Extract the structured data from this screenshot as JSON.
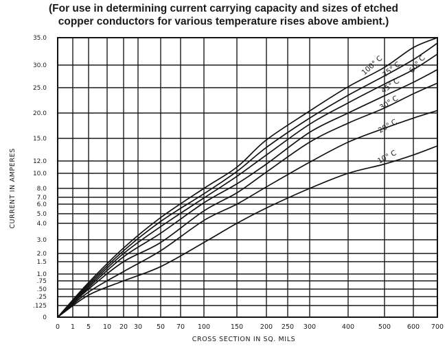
{
  "caption": {
    "line1": "(For use in determining current carrying capacity and sizes of etched",
    "line2": "copper conductors for various temperature rises above ambient.)"
  },
  "chart_data": {
    "type": "line",
    "title": "(For use in determining current carrying capacity and sizes of etched copper conductors for various temperature rises above ambient.)",
    "xlabel": "CROSS SECTION IN SQ. MILS",
    "ylabel": "CURRENT IN AMPERES",
    "xlim": [
      0,
      700
    ],
    "ylim": [
      0,
      35
    ],
    "grid": true,
    "x_ticks": [
      "0",
      "1",
      "5",
      "10",
      "20",
      "30",
      "50",
      "70",
      "100",
      "150",
      "200",
      "250",
      "300",
      "400",
      "500",
      "600",
      "700"
    ],
    "y_ticks": [
      "0",
      ".125",
      ".25",
      ".50",
      ".75",
      "1.0",
      "1.5",
      "2.0",
      "3.0",
      "4.0",
      "5.0",
      "6.0",
      "7.0",
      "8.0",
      "10.0",
      "12.0",
      "15.0",
      "20.0",
      "25.0",
      "30.0",
      "35.0"
    ],
    "series": [
      {
        "name": "10° C",
        "values": [
          [
            0,
            0
          ],
          [
            5,
            0.3
          ],
          [
            20,
            0.75
          ],
          [
            50,
            1.3
          ],
          [
            100,
            2.8
          ],
          [
            150,
            4.0
          ],
          [
            200,
            5.6
          ],
          [
            300,
            8.0
          ],
          [
            400,
            10.0
          ],
          [
            500,
            11.5
          ],
          [
            600,
            12.8
          ],
          [
            700,
            14.0
          ]
        ]
      },
      {
        "name": "20° C",
        "values": [
          [
            0,
            0
          ],
          [
            5,
            0.4
          ],
          [
            20,
            1.1
          ],
          [
            50,
            2.2
          ],
          [
            100,
            4.3
          ],
          [
            150,
            6.0
          ],
          [
            200,
            8.2
          ],
          [
            300,
            11.8
          ],
          [
            400,
            14.5
          ],
          [
            500,
            17.0
          ],
          [
            600,
            19.0
          ],
          [
            700,
            20.5
          ]
        ]
      },
      {
        "name": "30° C",
        "values": [
          [
            0,
            0
          ],
          [
            5,
            0.5
          ],
          [
            20,
            1.5
          ],
          [
            50,
            2.8
          ],
          [
            100,
            5.3
          ],
          [
            150,
            7.5
          ],
          [
            200,
            10.2
          ],
          [
            300,
            14.5
          ],
          [
            400,
            18.0
          ],
          [
            500,
            21.0
          ],
          [
            600,
            23.8
          ],
          [
            700,
            26.0
          ]
        ]
      },
      {
        "name": "45° C",
        "values": [
          [
            0,
            0
          ],
          [
            5,
            0.55
          ],
          [
            20,
            1.8
          ],
          [
            50,
            3.4
          ],
          [
            100,
            6.2
          ],
          [
            150,
            8.6
          ],
          [
            200,
            11.5
          ],
          [
            300,
            16.2
          ],
          [
            400,
            20.0
          ],
          [
            500,
            23.4
          ],
          [
            600,
            26.2
          ],
          [
            700,
            29.0
          ]
        ]
      },
      {
        "name": "60° C",
        "values": [
          [
            0,
            0
          ],
          [
            5,
            0.6
          ],
          [
            20,
            2.0
          ],
          [
            50,
            3.8
          ],
          [
            100,
            6.9
          ],
          [
            150,
            9.6
          ],
          [
            200,
            12.8
          ],
          [
            300,
            17.8
          ],
          [
            400,
            22.0
          ],
          [
            500,
            25.8
          ],
          [
            600,
            29.0
          ],
          [
            700,
            32.0
          ]
        ]
      },
      {
        "name": "75° C",
        "values": [
          [
            0,
            0
          ],
          [
            5,
            0.65
          ],
          [
            20,
            2.2
          ],
          [
            50,
            4.2
          ],
          [
            100,
            7.4
          ],
          [
            150,
            10.3
          ],
          [
            200,
            13.8
          ],
          [
            300,
            19.0
          ],
          [
            400,
            23.5
          ],
          [
            500,
            27.6
          ],
          [
            600,
            31.0
          ],
          [
            700,
            34.0
          ]
        ]
      },
      {
        "name": "100° C",
        "values": [
          [
            0,
            0
          ],
          [
            5,
            0.7
          ],
          [
            20,
            2.4
          ],
          [
            50,
            4.6
          ],
          [
            100,
            8.0
          ],
          [
            150,
            11.0
          ],
          [
            200,
            14.8
          ],
          [
            300,
            20.4
          ],
          [
            400,
            25.2
          ],
          [
            500,
            29.5
          ],
          [
            600,
            33.2
          ],
          [
            700,
            35.0
          ]
        ]
      }
    ]
  }
}
